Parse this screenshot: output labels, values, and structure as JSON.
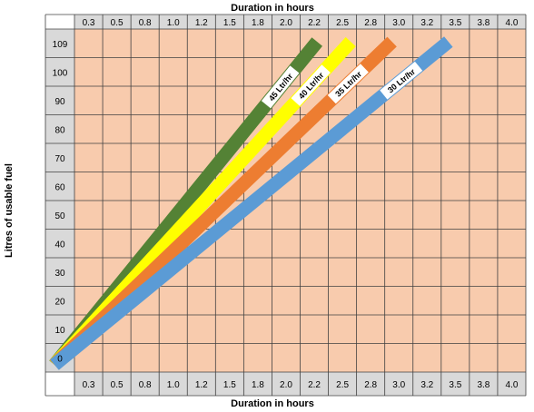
{
  "chart_data": {
    "type": "line",
    "title": "",
    "xlabel": "Duration in hours",
    "ylabel": "Litres of usable fuel",
    "x_ticks": [
      "0.3",
      "0.5",
      "0.8",
      "1.0",
      "1.2",
      "1.5",
      "1.8",
      "2.0",
      "2.2",
      "2.5",
      "2.8",
      "3.0",
      "3.2",
      "3.5",
      "3.8",
      "4.0"
    ],
    "y_ticks": [
      "109",
      "100",
      "90",
      "80",
      "70",
      "60",
      "50",
      "40",
      "30",
      "20",
      "10",
      "0"
    ],
    "xlim": [
      0.3,
      4.0
    ],
    "ylim": [
      0,
      109
    ],
    "grid": true,
    "series": [
      {
        "name": "45 Ltr/hr",
        "rate": 45,
        "color": "#548235",
        "x": [
          0,
          2.42
        ],
        "y": [
          0,
          109
        ]
      },
      {
        "name": "40 Ltr/hr",
        "rate": 40,
        "color": "#ffff00",
        "x": [
          0,
          2.73
        ],
        "y": [
          0,
          109
        ]
      },
      {
        "name": "35 Ltr/hr",
        "rate": 35,
        "color": "#ed7d31",
        "x": [
          0,
          3.11
        ],
        "y": [
          0,
          109
        ]
      },
      {
        "name": "30 Ltr/hr",
        "rate": 30,
        "color": "#5b9bd5",
        "x": [
          0,
          3.63
        ],
        "y": [
          0,
          109
        ]
      }
    ]
  },
  "colors": {
    "plot_background": "#f8cbad",
    "tick_cell_background": "#d9d9d9",
    "grid": "#404040"
  }
}
